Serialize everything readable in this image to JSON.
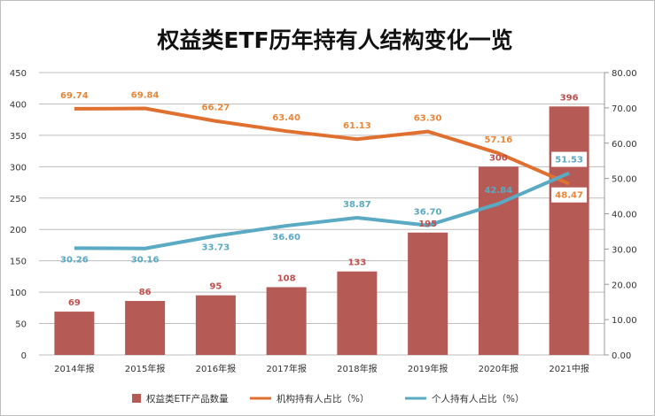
{
  "chart_data": {
    "type": "bar+line",
    "title": "权益类ETF历年持有人结构变化一览",
    "categories": [
      "2014年报",
      "2015年报",
      "2016年报",
      "2017年报",
      "2018年报",
      "2019年报",
      "2020年报",
      "2021中报"
    ],
    "y_left": {
      "range": [
        0,
        450
      ],
      "ticks": [
        "0",
        "50",
        "100",
        "150",
        "200",
        "250",
        "300",
        "350",
        "400",
        "450"
      ]
    },
    "y_right": {
      "range": [
        0,
        80
      ],
      "ticks": [
        "0.00",
        "10.00",
        "20.00",
        "30.00",
        "40.00",
        "50.00",
        "60.00",
        "70.00",
        "80.00"
      ]
    },
    "grid": true,
    "legend_position": "bottom",
    "series": [
      {
        "name": "权益类ETF产品数量",
        "type": "bar",
        "axis": "left",
        "color": "#b55a55",
        "label_color": "#c0504d",
        "values": [
          69,
          86,
          95,
          108,
          133,
          195,
          300,
          396
        ]
      },
      {
        "name": "机构持有人占比（%）",
        "type": "line",
        "axis": "right",
        "color": "#e07030",
        "label_color": "#e8863a",
        "values": [
          69.74,
          69.84,
          66.27,
          63.4,
          61.13,
          63.3,
          57.16,
          48.47
        ]
      },
      {
        "name": "个人持有人占比（%）",
        "type": "line",
        "axis": "right",
        "color": "#5aaac4",
        "label_color": "#5aaac4",
        "values": [
          30.26,
          30.16,
          33.73,
          36.6,
          38.87,
          36.7,
          42.84,
          51.53
        ]
      }
    ]
  }
}
